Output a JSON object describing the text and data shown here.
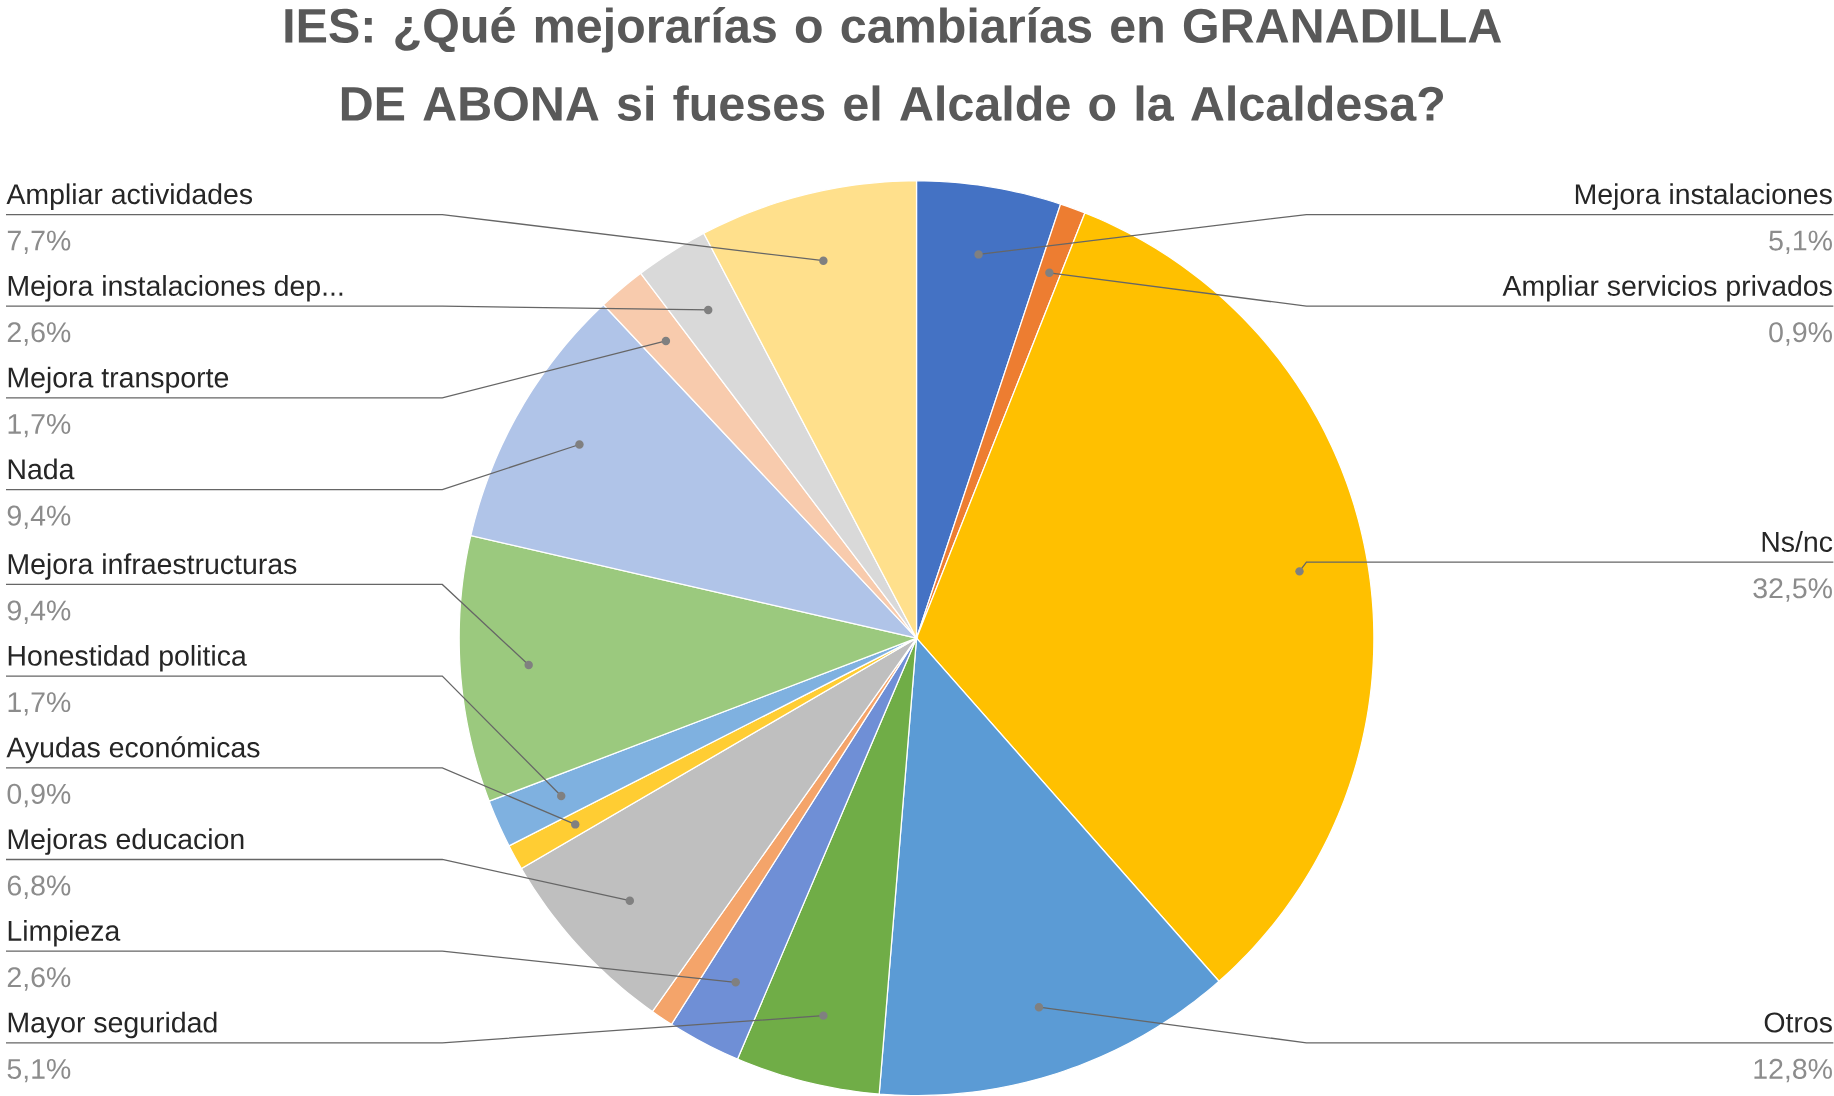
{
  "chart_data": {
    "type": "pie",
    "title": "IES: ¿Qué mejorarías o cambiarías en GRANADILLA DE ABONA si fueses el Alcalde o la Alcaldesa?",
    "categories": [
      "Mejora instalaciones",
      "Ampliar servicios privados",
      "Ns/nc",
      "Otros",
      "Mayor seguridad",
      "Limpieza",
      null,
      "Mejoras educacion",
      "Ayudas económicas",
      "Honestidad politica",
      "Mejora infraestructuras",
      "Nada",
      "Mejora transporte",
      "Mejora instalaciones dep...",
      "Ampliar actividades"
    ],
    "values": [
      5.1,
      0.9,
      32.5,
      12.8,
      5.1,
      2.6,
      0.8,
      6.8,
      0.9,
      1.7,
      9.4,
      9.4,
      1.7,
      2.6,
      7.7
    ],
    "value_labels": [
      "5,1%",
      "0,9%",
      "32,5%",
      "12,8%",
      "5,1%",
      "2,6%",
      null,
      "6,8%",
      "0,9%",
      "1,7%",
      "9,4%",
      "9,4%",
      "1,7%",
      "2,6%",
      "7,7%"
    ],
    "colors": [
      "#4472c4",
      "#ed7d31",
      "#ffc000",
      "#5b9bd5",
      "#70ad47",
      "#6f8fd6",
      "#f4a46a",
      "#bfbfbf",
      "#ffcd33",
      "#7fb1e0",
      "#9bc97e",
      "#b0c4e8",
      "#f8cbad",
      "#d9d9d9",
      "#ffe08c"
    ]
  }
}
